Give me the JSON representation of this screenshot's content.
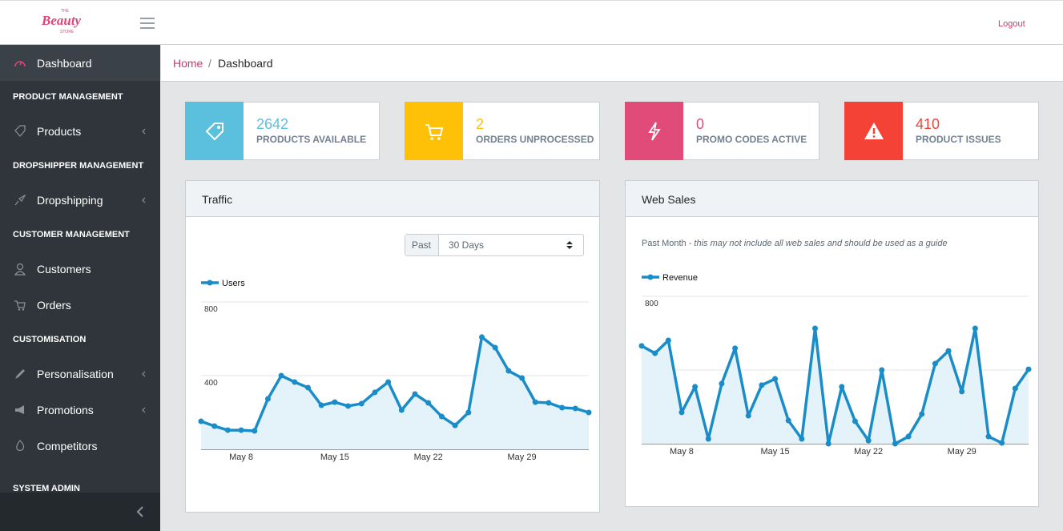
{
  "header": {
    "logo": {
      "top": "THE",
      "main": "Beauty",
      "bottom": "STORE"
    },
    "logout": "Logout"
  },
  "sidebar": {
    "dashboard": "Dashboard",
    "sections": [
      {
        "heading": "PRODUCT MANAGEMENT",
        "items": [
          "Products"
        ]
      },
      {
        "heading": "DROPSHIPPER MANAGEMENT",
        "items": [
          "Dropshipping"
        ]
      },
      {
        "heading": "CUSTOMER MANAGEMENT",
        "items": [
          "Customers",
          "Orders"
        ]
      },
      {
        "heading": "CUSTOMISATION",
        "items": [
          "Personalisation",
          "Promotions",
          "Competitors"
        ]
      },
      {
        "heading": "SYSTEM ADMIN",
        "items": []
      }
    ]
  },
  "breadcrumb": [
    "Home",
    "Dashboard"
  ],
  "stats": [
    {
      "value": 2642,
      "label": "PRODUCTS AVAILABLE",
      "color": "#5bc0de"
    },
    {
      "value": 2,
      "label": "ORDERS UNPROCESSED",
      "color": "#ffc107"
    },
    {
      "value": 0,
      "label": "PROMO CODES ACTIVE",
      "color": "#e04b7a"
    },
    {
      "value": 410,
      "label": "PRODUCT ISSUES",
      "color": "#f44336"
    }
  ],
  "traffic_filter": {
    "prefix": "Past",
    "option": "30 Days"
  },
  "web_sales_note": {
    "lead": "Past Month",
    "text": "- this may not include all web sales and should be used as a guide"
  },
  "chart_data": [
    {
      "type": "line",
      "title": "Traffic",
      "categories": [
        null,
        null,
        null,
        "May 8",
        null,
        null,
        null,
        null,
        null,
        null,
        "May 15",
        null,
        null,
        null,
        null,
        null,
        null,
        "May 22",
        null,
        null,
        null,
        null,
        null,
        null,
        "May 29",
        null,
        null,
        null,
        null,
        null
      ],
      "series": [
        {
          "name": "Users",
          "color": "#1a8cc8",
          "area_color": "#e4f2fa",
          "values": [
            152,
            126,
            104,
            104,
            100,
            274,
            400,
            365,
            335,
            239,
            256,
            235,
            248,
            309,
            365,
            213,
            300,
            252,
            178,
            130,
            200,
            609,
            552,
            426,
            387,
            256,
            252,
            226,
            222,
            200
          ]
        }
      ],
      "ylim": [
        0,
        800
      ],
      "yticks": [
        400,
        800
      ],
      "grid": true
    },
    {
      "type": "line",
      "title": "Web Sales",
      "categories": [
        null,
        null,
        null,
        "May 8",
        null,
        null,
        null,
        null,
        null,
        null,
        "May 15",
        null,
        null,
        null,
        null,
        null,
        null,
        "May 22",
        null,
        null,
        null,
        null,
        null,
        null,
        "May 29",
        null,
        null,
        null,
        null,
        null
      ],
      "series": [
        {
          "name": "Revenue",
          "color": "#1a8cc8",
          "area_color": "#e4f2fa",
          "values": [
            531,
            491,
            561,
            170,
            309,
            26,
            326,
            518,
            152,
            318,
            352,
            126,
            26,
            626,
            0,
            309,
            122,
            17,
            400,
            0,
            39,
            161,
            435,
            504,
            283,
            626,
            39,
            4,
            300,
            404
          ]
        }
      ],
      "ylim": [
        0,
        800
      ],
      "yticks": [
        400,
        800
      ],
      "grid": true
    }
  ]
}
